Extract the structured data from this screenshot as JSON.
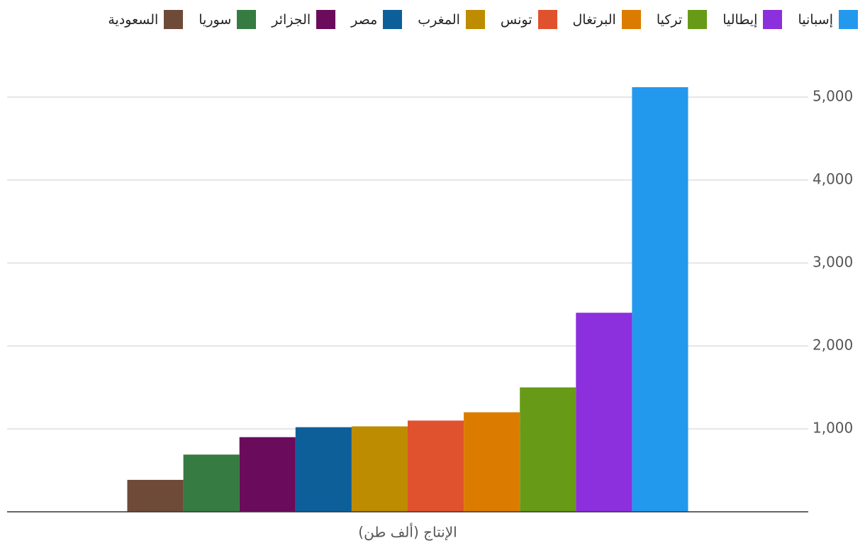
{
  "chart_data": {
    "type": "bar",
    "categories": [
      "الإنتاج (ألف طن)"
    ],
    "series": [
      {
        "name": "إسبانيا",
        "color": "#2399ee",
        "values": [
          5120
        ]
      },
      {
        "name": "إيطاليا",
        "color": "#8c2fdc",
        "values": [
          2400
        ]
      },
      {
        "name": "تركيا",
        "color": "#679a17",
        "values": [
          1500
        ]
      },
      {
        "name": "البرتغال",
        "color": "#db7c00",
        "values": [
          1200
        ]
      },
      {
        "name": "تونس",
        "color": "#e0522e",
        "values": [
          1100
        ]
      },
      {
        "name": "المغرب",
        "color": "#bd8c00",
        "values": [
          1030
        ]
      },
      {
        "name": "مصر",
        "color": "#0d5f9a",
        "values": [
          1020
        ]
      },
      {
        "name": "الجزائر",
        "color": "#6b0b5b",
        "values": [
          900
        ]
      },
      {
        "name": "سوريا",
        "color": "#367b41",
        "values": [
          690
        ]
      },
      {
        "name": "السعودية",
        "color": "#6e4a38",
        "values": [
          385
        ]
      }
    ],
    "ylim": [
      0,
      5300
    ],
    "yticks": [
      {
        "value": 1000,
        "label": "1,000"
      },
      {
        "value": 2000,
        "label": "2,000"
      },
      {
        "value": 3000,
        "label": "3,000"
      },
      {
        "value": 4000,
        "label": "4,000"
      },
      {
        "value": 5000,
        "label": "5,000"
      }
    ],
    "grid": true,
    "legend": "top"
  }
}
